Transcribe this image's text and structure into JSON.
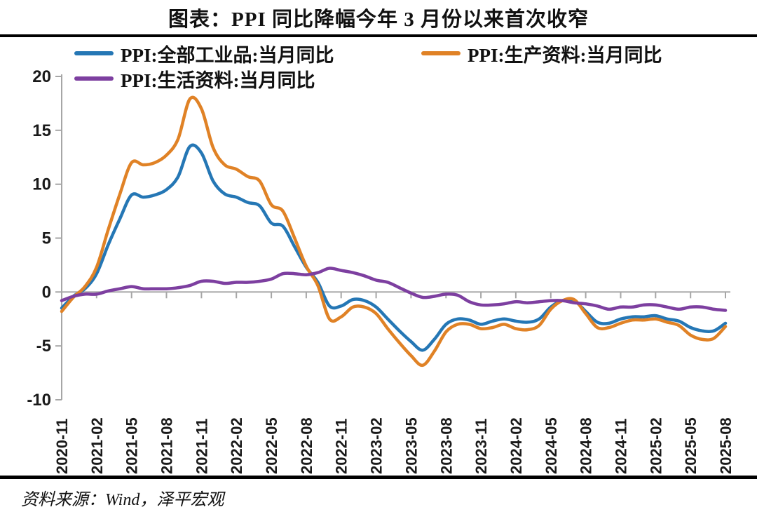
{
  "title": "图表：PPI 同比降幅今年 3 月份以来首次收窄",
  "source_note": "资料来源：Wind，泽平宏观",
  "chart_data": {
    "type": "line",
    "title": "图表：PPI 同比降幅今年 3 月份以来首次收窄",
    "xlabel": "",
    "ylabel": "",
    "ylim": [
      -10,
      20
    ],
    "yticks": [
      20,
      15,
      10,
      5,
      0,
      -5,
      -10
    ],
    "grid": "zero-line-only",
    "legend_position": "top-left-two-rows",
    "axis_color": "#A6A6A6",
    "zero_line_color": "#ADADAD",
    "x_tick_every": 3,
    "x_tick_labels": [
      "2020-11",
      "2021-02",
      "2021-05",
      "2021-08",
      "2021-11",
      "2022-02",
      "2022-05",
      "2022-08",
      "2022-11",
      "2023-02",
      "2023-05",
      "2023-08",
      "2023-11",
      "2024-02",
      "2024-05",
      "2024-08",
      "2024-11",
      "2025-02",
      "2025-05",
      "2025-08"
    ],
    "x": [
      "2020-11",
      "2020-12",
      "2021-01",
      "2021-02",
      "2021-03",
      "2021-04",
      "2021-05",
      "2021-06",
      "2021-07",
      "2021-08",
      "2021-09",
      "2021-10",
      "2021-11",
      "2021-12",
      "2022-01",
      "2022-02",
      "2022-03",
      "2022-04",
      "2022-05",
      "2022-06",
      "2022-07",
      "2022-08",
      "2022-09",
      "2022-10",
      "2022-11",
      "2022-12",
      "2023-01",
      "2023-02",
      "2023-03",
      "2023-04",
      "2023-05",
      "2023-06",
      "2023-07",
      "2023-08",
      "2023-09",
      "2023-10",
      "2023-11",
      "2023-12",
      "2024-01",
      "2024-02",
      "2024-03",
      "2024-04",
      "2024-05",
      "2024-06",
      "2024-07",
      "2024-08",
      "2024-09",
      "2024-10",
      "2024-11",
      "2024-12",
      "2025-01",
      "2025-02",
      "2025-03",
      "2025-04",
      "2025-05",
      "2025-06",
      "2025-07",
      "2025-08"
    ],
    "series": [
      {
        "name": "PPI:全部工业品:当月同比",
        "color": "#2577B5",
        "values": [
          -1.5,
          -0.4,
          0.3,
          1.7,
          4.4,
          6.8,
          9.0,
          8.8,
          9.0,
          9.5,
          10.7,
          13.5,
          12.9,
          10.3,
          9.1,
          8.8,
          8.3,
          8.0,
          6.4,
          6.1,
          4.2,
          2.3,
          0.9,
          -1.3,
          -1.3,
          -0.7,
          -0.8,
          -1.4,
          -2.5,
          -3.6,
          -4.6,
          -5.4,
          -4.4,
          -3.0,
          -2.5,
          -2.6,
          -3.0,
          -2.7,
          -2.5,
          -2.7,
          -2.8,
          -2.5,
          -1.4,
          -0.8,
          -0.8,
          -1.8,
          -2.8,
          -2.9,
          -2.5,
          -2.3,
          -2.3,
          -2.2,
          -2.5,
          -2.7,
          -3.3,
          -3.6,
          -3.6,
          -2.9
        ]
      },
      {
        "name": "PPI:生产资料:当月同比",
        "color": "#E08226",
        "values": [
          -1.8,
          -0.5,
          0.5,
          2.3,
          5.8,
          9.1,
          12.0,
          11.8,
          12.0,
          12.7,
          14.2,
          17.9,
          17.0,
          13.4,
          11.8,
          11.4,
          10.7,
          10.3,
          8.1,
          7.5,
          5.0,
          2.4,
          0.6,
          -2.5,
          -2.3,
          -1.4,
          -1.4,
          -2.0,
          -3.4,
          -4.7,
          -5.9,
          -6.8,
          -5.5,
          -3.7,
          -3.0,
          -3.0,
          -3.4,
          -3.3,
          -3.0,
          -3.4,
          -3.5,
          -3.1,
          -1.6,
          -0.8,
          -0.7,
          -2.0,
          -3.3,
          -3.3,
          -2.9,
          -2.6,
          -2.6,
          -2.5,
          -2.8,
          -3.1,
          -4.0,
          -4.4,
          -4.3,
          -3.2
        ]
      },
      {
        "name": "PPI:生活资料:当月同比",
        "color": "#7D3FA0",
        "values": [
          -0.8,
          -0.4,
          -0.2,
          -0.2,
          0.1,
          0.3,
          0.5,
          0.3,
          0.3,
          0.3,
          0.4,
          0.6,
          1.0,
          1.0,
          0.8,
          0.9,
          0.9,
          1.0,
          1.2,
          1.7,
          1.7,
          1.6,
          1.8,
          2.2,
          2.0,
          1.8,
          1.5,
          1.1,
          0.9,
          0.4,
          -0.1,
          -0.5,
          -0.4,
          -0.2,
          -0.3,
          -0.9,
          -1.2,
          -1.2,
          -1.1,
          -0.9,
          -1.0,
          -0.9,
          -0.8,
          -0.8,
          -1.0,
          -1.1,
          -1.3,
          -1.6,
          -1.4,
          -1.4,
          -1.2,
          -1.2,
          -1.4,
          -1.6,
          -1.4,
          -1.4,
          -1.6,
          -1.7
        ]
      }
    ]
  }
}
